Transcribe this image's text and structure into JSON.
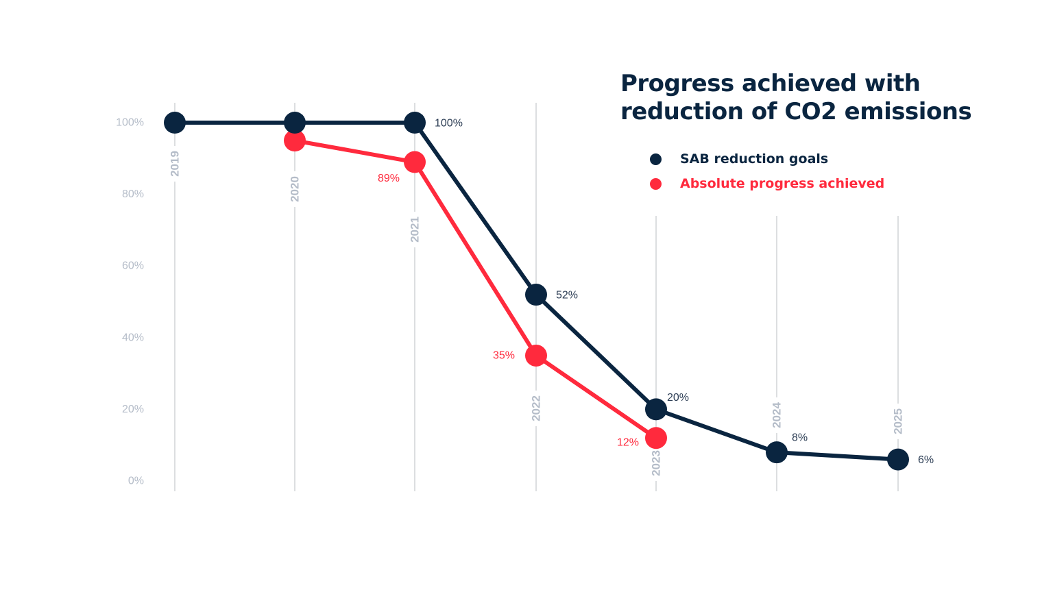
{
  "colors": {
    "goal": "#0a2540",
    "progress": "#ff2a3d",
    "gridline": "#c4c7cc",
    "axis_text": "#b4bcc8",
    "goal_label": "#2d3e55"
  },
  "chart_data": {
    "type": "line",
    "title": "Progress achieved with reduction of CO2 emissions",
    "title_lines": [
      "Progress achieved with",
      "reduction of CO2 emissions"
    ],
    "xlabel": "",
    "ylabel": "",
    "ylim": [
      0,
      100
    ],
    "y_ticks": [
      "0%",
      "20%",
      "40%",
      "60%",
      "80%",
      "100%"
    ],
    "y_tick_values": [
      0,
      20,
      40,
      60,
      80,
      100
    ],
    "categories": [
      "2019",
      "2020",
      "2021",
      "2022",
      "2023",
      "2024",
      "2025"
    ],
    "grid": "vertical",
    "legend_position": "top-right",
    "series": [
      {
        "name": "SAB reduction goals",
        "color": "#0a2540",
        "values": [
          100,
          100,
          100,
          52,
          20,
          8,
          6
        ],
        "labels": [
          null,
          null,
          "100%",
          "52%",
          "20%",
          "8%",
          "6%"
        ]
      },
      {
        "name": "Absolute progress achieved",
        "color": "#ff2a3d",
        "values": [
          null,
          95,
          89,
          35,
          12,
          null,
          null
        ],
        "labels": [
          null,
          null,
          "89%",
          "35%",
          "12%",
          null,
          null
        ]
      }
    ]
  }
}
